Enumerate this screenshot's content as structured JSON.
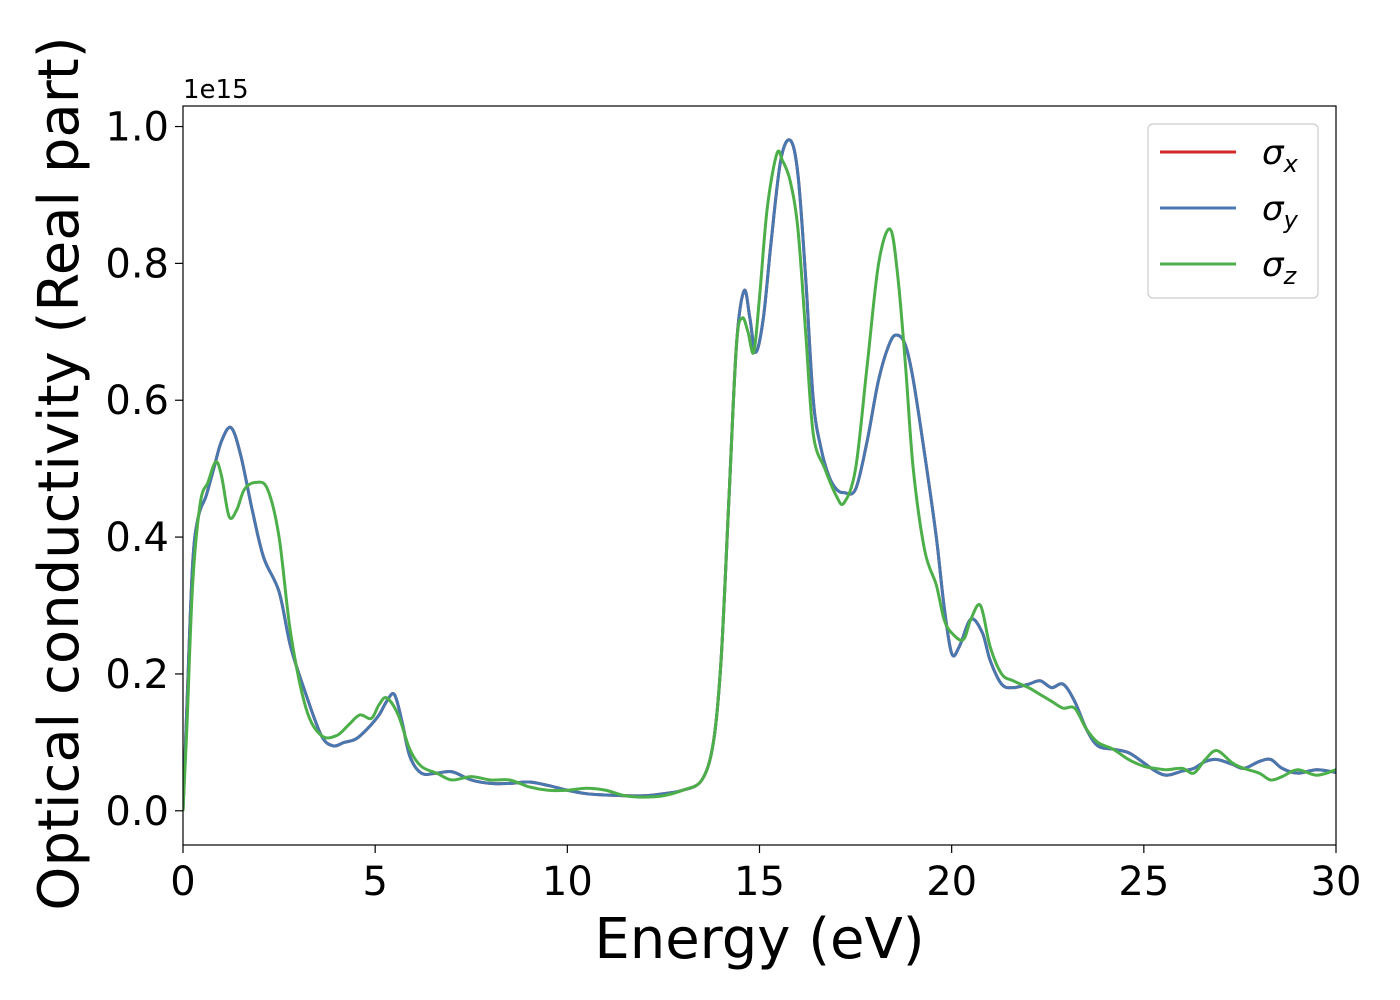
{
  "chart_data": {
    "type": "line",
    "xlabel": "Energy (eV)",
    "ylabel": "Optical conductivity (Real part)",
    "y_offset_label": "1e15",
    "xlim": [
      0,
      30
    ],
    "ylim": [
      -0.05,
      1.03
    ],
    "x_ticks": [
      0,
      5,
      10,
      15,
      20,
      25,
      30
    ],
    "x_tick_labels": [
      "0",
      "5",
      "10",
      "15",
      "20",
      "25",
      "30"
    ],
    "y_ticks": [
      0.0,
      0.2,
      0.4,
      0.6,
      0.8,
      1.0
    ],
    "y_tick_labels": [
      "0.0",
      "0.2",
      "0.4",
      "0.6",
      "0.8",
      "1.0"
    ],
    "grid": false,
    "legend_position": "top-right",
    "colors": {
      "sigma_x": "#d62728",
      "sigma_y": "#4878b0",
      "sigma_z": "#4daf4a"
    },
    "series": [
      {
        "name": "σx",
        "symbol": "σ",
        "subscript": "x",
        "color": "#d62728",
        "x": [
          0,
          0.1,
          0.25,
          0.4,
          0.6,
          0.8,
          1.0,
          1.25,
          1.5,
          1.8,
          2.1,
          2.5,
          2.8,
          3.2,
          3.6,
          3.9,
          4.2,
          4.5,
          4.8,
          5.1,
          5.3,
          5.5,
          5.7,
          5.9,
          6.2,
          6.6,
          7.0,
          7.5,
          8.0,
          8.5,
          9.0,
          9.5,
          10.0,
          10.5,
          11.0,
          11.5,
          12.0,
          12.5,
          13.0,
          13.5,
          13.8,
          14.0,
          14.2,
          14.4,
          14.6,
          14.75,
          14.9,
          15.1,
          15.3,
          15.55,
          15.8,
          16.0,
          16.2,
          16.4,
          16.6,
          16.8,
          17.0,
          17.2,
          17.5,
          17.8,
          18.1,
          18.4,
          18.6,
          18.8,
          19.0,
          19.3,
          19.6,
          19.8,
          20.0,
          20.2,
          20.5,
          20.8,
          21.0,
          21.3,
          21.6,
          22.0,
          22.3,
          22.6,
          22.9,
          23.2,
          23.5,
          23.8,
          24.2,
          24.6,
          25.0,
          25.3,
          25.6,
          26.0,
          26.3,
          26.6,
          26.9,
          27.3,
          27.6,
          28.0,
          28.3,
          28.6,
          29.0,
          29.5,
          30.0
        ],
        "values": [
          0.0,
          0.15,
          0.36,
          0.43,
          0.46,
          0.5,
          0.54,
          0.56,
          0.52,
          0.44,
          0.37,
          0.32,
          0.24,
          0.17,
          0.11,
          0.095,
          0.1,
          0.105,
          0.12,
          0.14,
          0.16,
          0.17,
          0.13,
          0.08,
          0.055,
          0.055,
          0.057,
          0.045,
          0.04,
          0.04,
          0.042,
          0.037,
          0.03,
          0.025,
          0.023,
          0.022,
          0.022,
          0.025,
          0.03,
          0.045,
          0.1,
          0.22,
          0.45,
          0.68,
          0.76,
          0.72,
          0.67,
          0.72,
          0.83,
          0.95,
          0.98,
          0.93,
          0.78,
          0.6,
          0.53,
          0.49,
          0.47,
          0.465,
          0.47,
          0.54,
          0.63,
          0.685,
          0.695,
          0.68,
          0.63,
          0.52,
          0.4,
          0.3,
          0.23,
          0.24,
          0.28,
          0.26,
          0.22,
          0.185,
          0.18,
          0.185,
          0.19,
          0.18,
          0.185,
          0.16,
          0.12,
          0.095,
          0.09,
          0.085,
          0.07,
          0.058,
          0.052,
          0.058,
          0.062,
          0.072,
          0.075,
          0.068,
          0.062,
          0.072,
          0.075,
          0.062,
          0.055,
          0.06,
          0.056
        ]
      },
      {
        "name": "σy",
        "symbol": "σ",
        "subscript": "y",
        "color": "#4878b0",
        "x": [
          0,
          0.1,
          0.25,
          0.4,
          0.6,
          0.8,
          1.0,
          1.25,
          1.5,
          1.8,
          2.1,
          2.5,
          2.8,
          3.2,
          3.6,
          3.9,
          4.2,
          4.5,
          4.8,
          5.1,
          5.3,
          5.5,
          5.7,
          5.9,
          6.2,
          6.6,
          7.0,
          7.5,
          8.0,
          8.5,
          9.0,
          9.5,
          10.0,
          10.5,
          11.0,
          11.5,
          12.0,
          12.5,
          13.0,
          13.5,
          13.8,
          14.0,
          14.2,
          14.4,
          14.6,
          14.75,
          14.9,
          15.1,
          15.3,
          15.55,
          15.8,
          16.0,
          16.2,
          16.4,
          16.6,
          16.8,
          17.0,
          17.2,
          17.5,
          17.8,
          18.1,
          18.4,
          18.6,
          18.8,
          19.0,
          19.3,
          19.6,
          19.8,
          20.0,
          20.2,
          20.5,
          20.8,
          21.0,
          21.3,
          21.6,
          22.0,
          22.3,
          22.6,
          22.9,
          23.2,
          23.5,
          23.8,
          24.2,
          24.6,
          25.0,
          25.3,
          25.6,
          26.0,
          26.3,
          26.6,
          26.9,
          27.3,
          27.6,
          28.0,
          28.3,
          28.6,
          29.0,
          29.5,
          30.0
        ],
        "values": [
          0.0,
          0.15,
          0.36,
          0.43,
          0.46,
          0.5,
          0.54,
          0.56,
          0.52,
          0.44,
          0.37,
          0.32,
          0.24,
          0.17,
          0.11,
          0.095,
          0.1,
          0.105,
          0.12,
          0.14,
          0.16,
          0.17,
          0.13,
          0.08,
          0.055,
          0.055,
          0.057,
          0.045,
          0.04,
          0.04,
          0.042,
          0.037,
          0.03,
          0.025,
          0.023,
          0.022,
          0.022,
          0.025,
          0.03,
          0.045,
          0.1,
          0.22,
          0.45,
          0.68,
          0.76,
          0.72,
          0.67,
          0.72,
          0.83,
          0.95,
          0.98,
          0.93,
          0.78,
          0.6,
          0.53,
          0.49,
          0.47,
          0.465,
          0.47,
          0.54,
          0.63,
          0.685,
          0.695,
          0.68,
          0.63,
          0.52,
          0.4,
          0.3,
          0.23,
          0.24,
          0.28,
          0.26,
          0.22,
          0.185,
          0.18,
          0.185,
          0.19,
          0.18,
          0.185,
          0.16,
          0.12,
          0.095,
          0.09,
          0.085,
          0.07,
          0.058,
          0.052,
          0.058,
          0.062,
          0.072,
          0.075,
          0.068,
          0.062,
          0.072,
          0.075,
          0.062,
          0.055,
          0.06,
          0.056
        ]
      },
      {
        "name": "σz",
        "symbol": "σ",
        "subscript": "z",
        "color": "#4daf4a",
        "x": [
          0,
          0.1,
          0.25,
          0.45,
          0.65,
          0.85,
          1.0,
          1.2,
          1.4,
          1.6,
          1.9,
          2.2,
          2.5,
          2.8,
          3.2,
          3.6,
          4.0,
          4.3,
          4.6,
          4.9,
          5.1,
          5.3,
          5.6,
          5.9,
          6.2,
          6.6,
          7.0,
          7.5,
          8.0,
          8.5,
          9.0,
          9.5,
          10.0,
          10.5,
          11.0,
          11.5,
          12.0,
          12.5,
          13.0,
          13.5,
          13.8,
          14.0,
          14.2,
          14.4,
          14.55,
          14.7,
          14.85,
          15.0,
          15.2,
          15.45,
          15.6,
          15.8,
          16.0,
          16.2,
          16.4,
          16.7,
          17.0,
          17.2,
          17.5,
          17.8,
          18.1,
          18.4,
          18.6,
          18.8,
          19.0,
          19.3,
          19.6,
          19.8,
          20.0,
          20.3,
          20.5,
          20.75,
          21.0,
          21.3,
          21.6,
          22.0,
          22.3,
          22.6,
          22.9,
          23.2,
          23.5,
          23.8,
          24.2,
          24.6,
          25.0,
          25.3,
          25.6,
          26.0,
          26.3,
          26.6,
          26.9,
          27.3,
          27.6,
          28.0,
          28.3,
          28.6,
          29.0,
          29.5,
          30.0
        ],
        "values": [
          0.0,
          0.12,
          0.33,
          0.45,
          0.48,
          0.51,
          0.49,
          0.43,
          0.44,
          0.47,
          0.48,
          0.47,
          0.4,
          0.26,
          0.15,
          0.11,
          0.11,
          0.125,
          0.14,
          0.135,
          0.155,
          0.165,
          0.14,
          0.09,
          0.065,
          0.055,
          0.045,
          0.05,
          0.045,
          0.045,
          0.035,
          0.03,
          0.03,
          0.033,
          0.03,
          0.022,
          0.02,
          0.022,
          0.03,
          0.045,
          0.1,
          0.22,
          0.45,
          0.68,
          0.72,
          0.7,
          0.67,
          0.75,
          0.88,
          0.96,
          0.95,
          0.92,
          0.85,
          0.7,
          0.55,
          0.5,
          0.46,
          0.45,
          0.5,
          0.65,
          0.8,
          0.85,
          0.78,
          0.65,
          0.5,
          0.38,
          0.33,
          0.28,
          0.26,
          0.25,
          0.28,
          0.3,
          0.24,
          0.2,
          0.19,
          0.18,
          0.17,
          0.16,
          0.15,
          0.15,
          0.12,
          0.1,
          0.09,
          0.075,
          0.065,
          0.062,
          0.06,
          0.062,
          0.055,
          0.075,
          0.088,
          0.07,
          0.062,
          0.055,
          0.045,
          0.05,
          0.06,
          0.052,
          0.06
        ]
      }
    ]
  }
}
